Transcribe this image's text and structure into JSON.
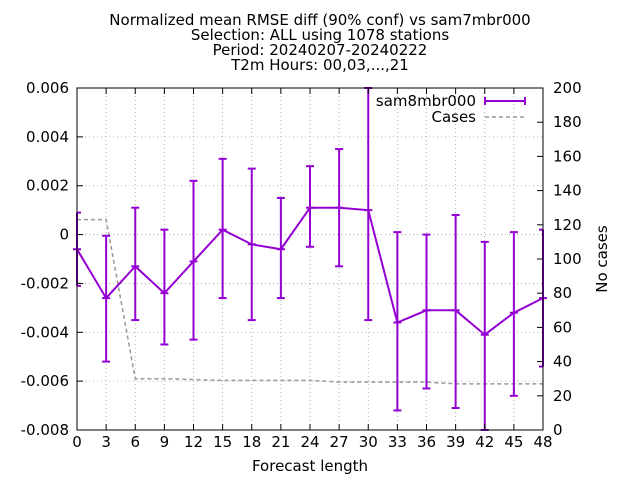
{
  "chart_data": {
    "type": "line",
    "title_lines": [
      "Normalized mean RMSE diff (90% conf) vs sam7mbr000",
      "Selection: ALL using  1078 stations",
      "Period: 20240207-20240222",
      "T2m   Hours: 00,03,...,21"
    ],
    "xlabel": "Forecast length",
    "ylabel": "",
    "y2label": "No cases",
    "x_ticks": [
      0,
      3,
      6,
      9,
      12,
      15,
      18,
      21,
      24,
      27,
      30,
      33,
      36,
      39,
      42,
      45,
      48
    ],
    "xlim": [
      0,
      48
    ],
    "ylim": [
      -0.008,
      0.006
    ],
    "y_ticks": [
      -0.008,
      -0.006,
      -0.004,
      -0.002,
      0,
      0.002,
      0.004,
      0.006
    ],
    "y_tick_labels": [
      "-0.008",
      "-0.006",
      "-0.004",
      "-0.002",
      "0",
      "0.002",
      "0.004",
      "0.006"
    ],
    "y2lim": [
      0,
      200
    ],
    "y2_ticks": [
      0,
      20,
      40,
      60,
      80,
      100,
      120,
      140,
      160,
      180,
      200
    ],
    "grid": true,
    "legend_position": "top-right",
    "series": [
      {
        "name": "sam8mbr000",
        "color": "#9400d3",
        "style": "solid-errorbars",
        "x": [
          0,
          3,
          6,
          9,
          12,
          15,
          18,
          21,
          24,
          27,
          30,
          33,
          36,
          39,
          42,
          45,
          48
        ],
        "y": [
          -0.0006,
          -0.0026,
          -0.0013,
          -0.0024,
          -0.0011,
          0.0002,
          -0.0004,
          -0.0006,
          0.0011,
          0.0011,
          0.001,
          -0.0036,
          -0.0031,
          -0.0031,
          -0.0041,
          -0.0032,
          -0.0026
        ],
        "y_low": [
          -0.0021,
          -0.0052,
          -0.0035,
          -0.0045,
          -0.0043,
          -0.0026,
          -0.0035,
          -0.0026,
          -0.0005,
          -0.0013,
          -0.0035,
          -0.0072,
          -0.0063,
          -0.0071,
          -0.008,
          -0.0066,
          -0.0054
        ],
        "y_high": [
          0.0009,
          -5e-05,
          0.0011,
          0.0002,
          0.0022,
          0.0031,
          0.0027,
          0.0015,
          0.0028,
          0.0035,
          0.0071,
          0.0001,
          0.0,
          0.0008,
          -0.0003,
          0.0001,
          0.0002
        ]
      },
      {
        "name": "Cases",
        "color": "#999999",
        "style": "dashed",
        "axis": "y2",
        "x": [
          0,
          3,
          6,
          9,
          12,
          15,
          18,
          21,
          24,
          27,
          30,
          33,
          36,
          39,
          42,
          45,
          48
        ],
        "y": [
          123,
          123,
          30,
          30,
          29.5,
          29,
          29,
          29,
          29,
          28,
          28,
          28,
          28,
          27,
          27,
          27,
          27
        ]
      }
    ]
  }
}
